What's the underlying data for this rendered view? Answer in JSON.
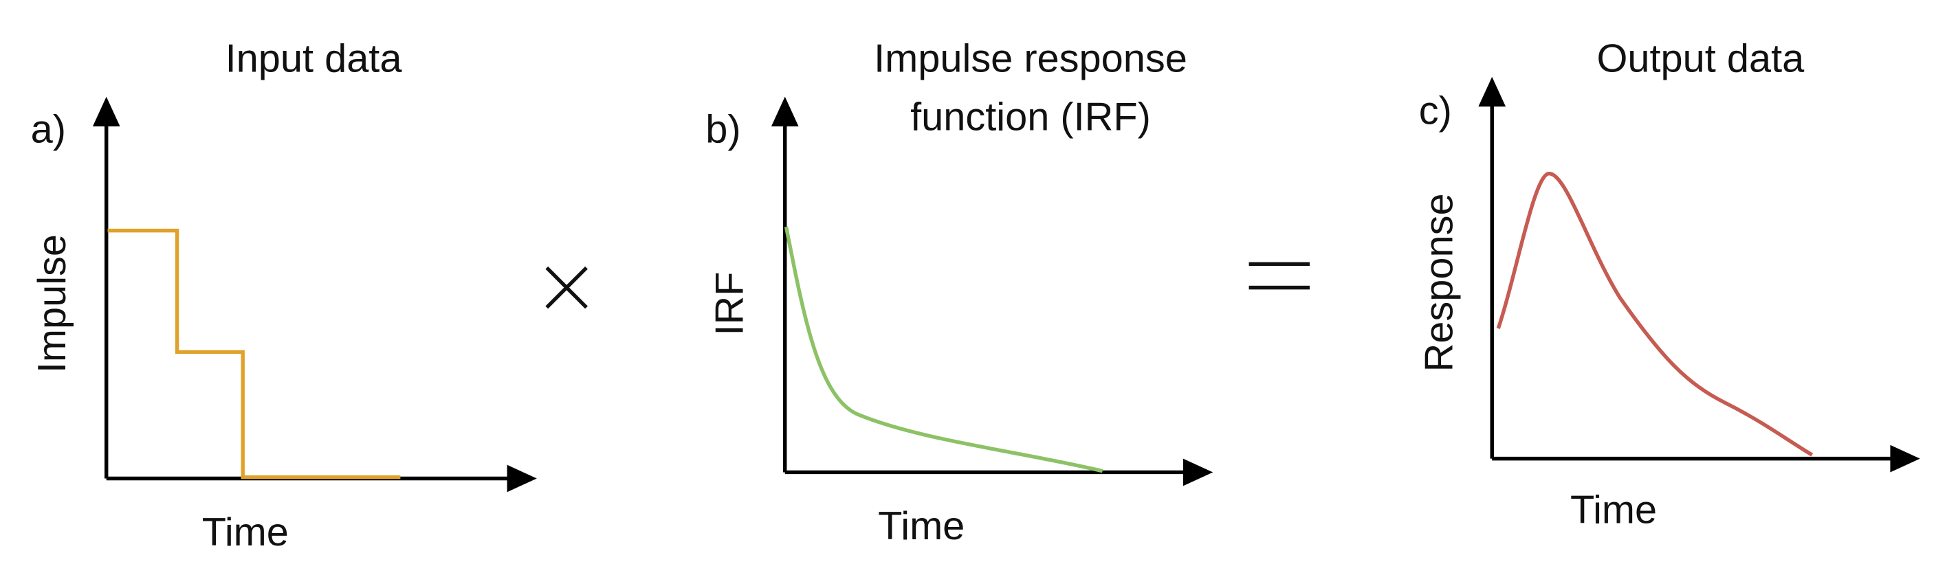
{
  "panels": [
    {
      "label": "a)",
      "title": [
        "Input data"
      ],
      "y_label": "Impulse",
      "x_label": "Time"
    },
    {
      "label": "b)",
      "title": [
        "Impulse response",
        "function (IRF)"
      ],
      "y_label": "IRF",
      "x_label": "Time"
    },
    {
      "label": "c)",
      "title": [
        "Output data"
      ],
      "y_label": "Response",
      "x_label": "Time"
    }
  ]
}
